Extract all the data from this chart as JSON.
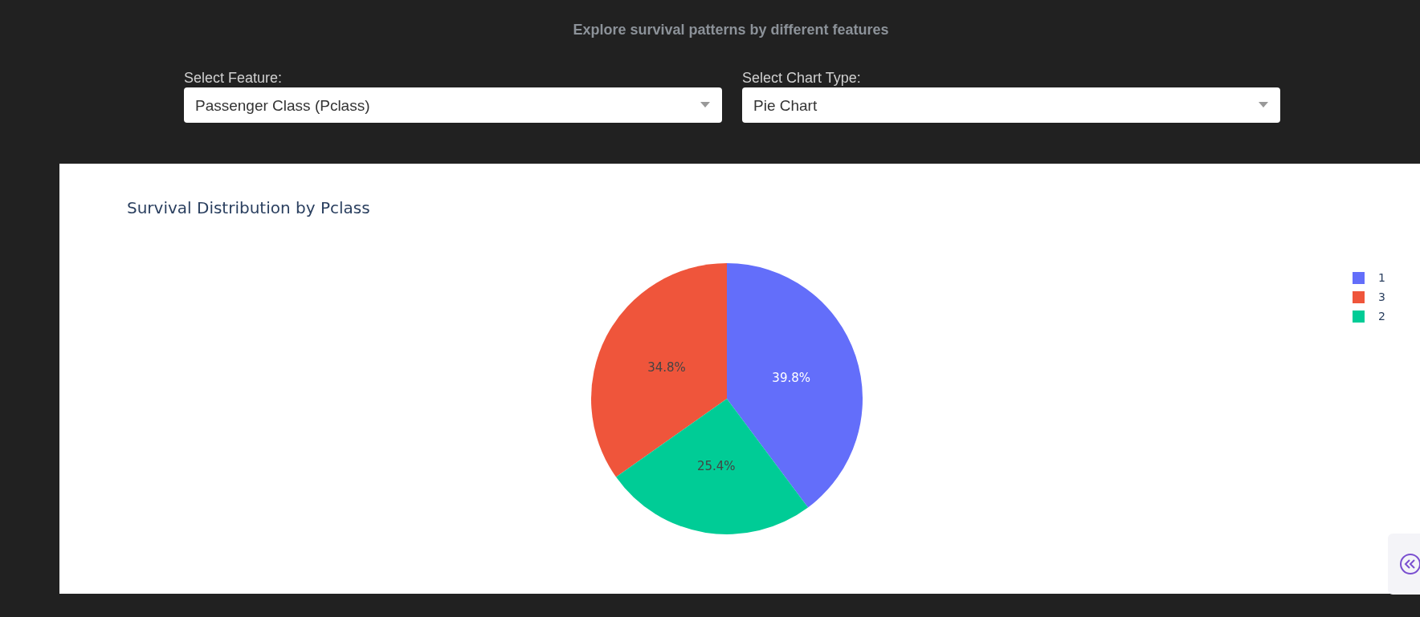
{
  "chart_data": {
    "type": "pie",
    "title": "Survival Distribution by Pclass",
    "annotations": [
      "Explore survival patterns by different features",
      "Select Feature:",
      "Passenger Class (Pclass)",
      "Select Chart Type:",
      "Pie Chart"
    ],
    "categories": [
      "1",
      "3",
      "2"
    ],
    "values": [
      39.8,
      34.8,
      25.4
    ],
    "colors": [
      "#636efa",
      "#ef553b",
      "#00cc96"
    ],
    "value_labels": [
      "39.8%",
      "34.8%",
      "25.4%"
    ],
    "legend": "top right"
  }
}
